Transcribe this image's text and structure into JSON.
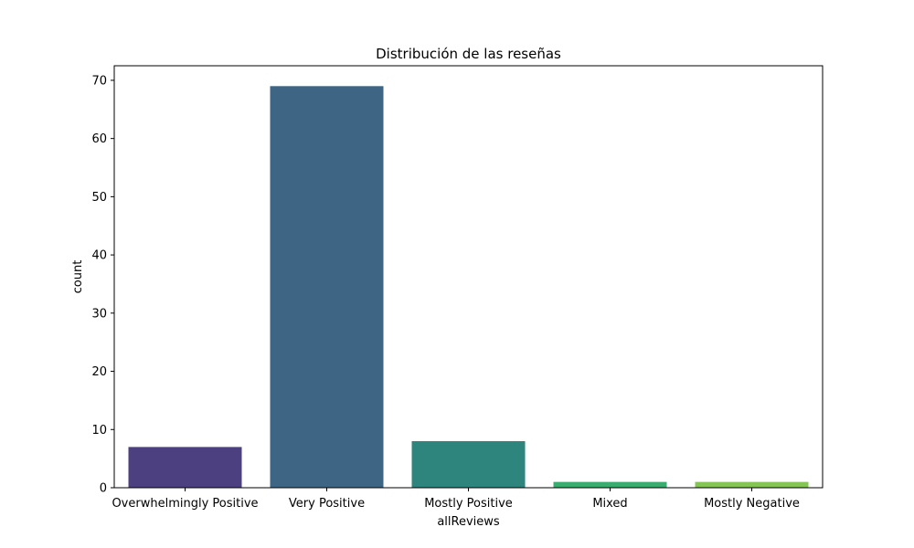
{
  "chart_data": {
    "type": "bar",
    "title": "Distribución de las reseñas",
    "xlabel": "allReviews",
    "ylabel": "count",
    "categories": [
      "Overwhelmingly Positive",
      "Very Positive",
      "Mostly Positive",
      "Mixed",
      "Mostly Negative"
    ],
    "values": [
      7,
      69,
      8,
      1,
      1
    ],
    "colors": [
      "#4c4080",
      "#3e6684",
      "#2e857d",
      "#3bac6f",
      "#84c553"
    ],
    "ylim": [
      0,
      72.5
    ],
    "yticks": [
      0,
      10,
      20,
      30,
      40,
      50,
      60,
      70
    ],
    "grid": false,
    "legend": false
  }
}
